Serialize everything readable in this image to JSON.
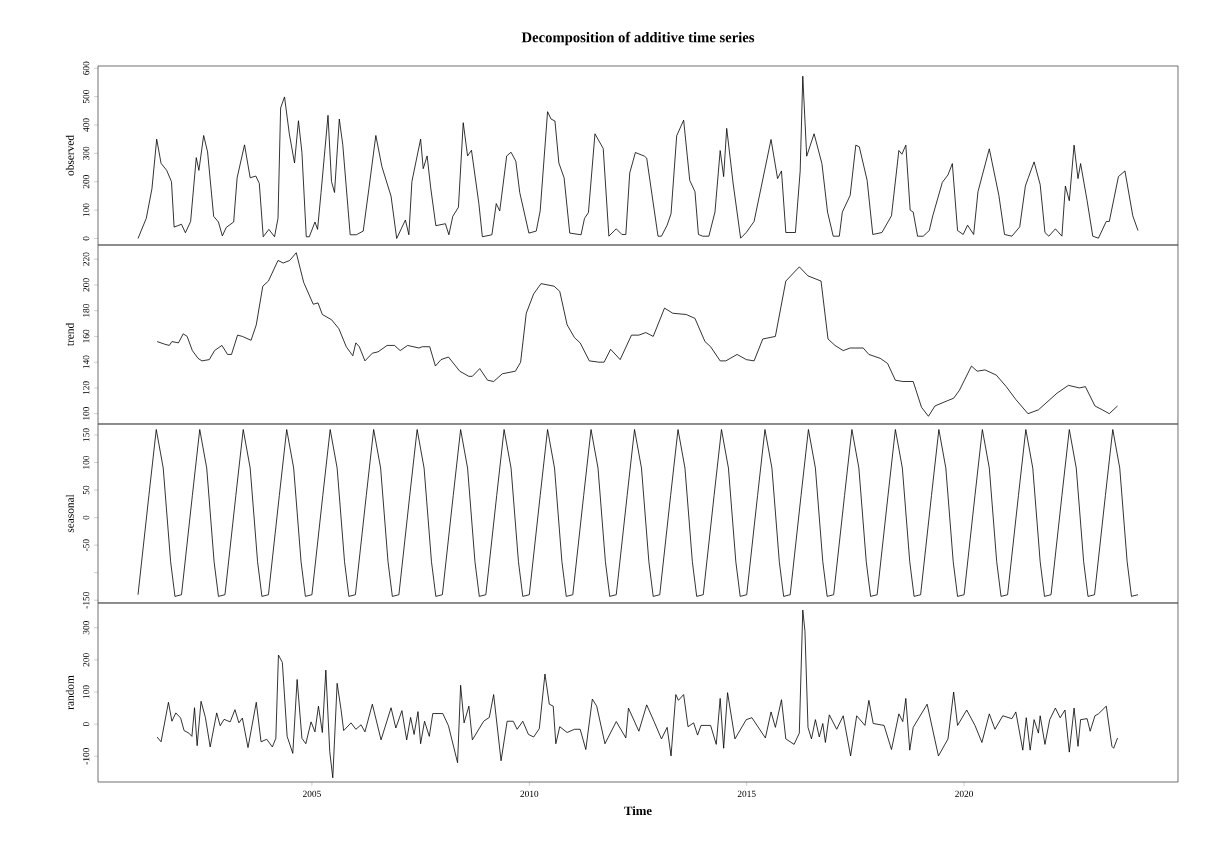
{
  "chart_data": [
    {
      "type": "line",
      "title": "Decomposition of additive time series",
      "ylabel": "observed",
      "color": "#000000",
      "xlim": [
        2000.08,
        2024.92
      ],
      "ylim": [
        -23,
        608
      ],
      "yticks": [
        0,
        100,
        200,
        300,
        400,
        500,
        600
      ],
      "tick_labels": "y",
      "x": [
        2001.0,
        2001.19,
        2001.32,
        2001.43,
        2001.53,
        2001.66,
        2001.77,
        2001.83,
        2002.0,
        2002.09,
        2002.21,
        2002.34,
        2002.4,
        2002.51,
        2002.6,
        2002.74,
        2002.85,
        2002.94,
        2003.03,
        2003.2,
        2003.28,
        2003.45,
        2003.58,
        2003.71,
        2003.79,
        2003.88,
        2004.01,
        2004.14,
        2004.22,
        2004.28,
        2004.37,
        2004.48,
        2004.6,
        2004.69,
        2004.77,
        2004.87,
        2004.94,
        2005.07,
        2005.13,
        2005.21,
        2005.37,
        2005.45,
        2005.52,
        2005.63,
        2005.71,
        2005.88,
        2006.02,
        2006.18,
        2006.31,
        2006.47,
        2006.61,
        2006.82,
        2006.95,
        2007.15,
        2007.23,
        2007.3,
        2007.5,
        2007.56,
        2007.65,
        2007.73,
        2007.85,
        2008.07,
        2008.15,
        2008.24,
        2008.37,
        2008.48,
        2008.58,
        2008.67,
        2008.84,
        2008.92,
        2009.14,
        2009.24,
        2009.32,
        2009.48,
        2009.58,
        2009.69,
        2009.78,
        2009.99,
        2010.16,
        2010.25,
        2010.42,
        2010.5,
        2010.59,
        2010.68,
        2010.8,
        2010.93,
        2011.19,
        2011.27,
        2011.36,
        2011.51,
        2011.7,
        2011.83,
        2012.0,
        2012.13,
        2012.22,
        2012.31,
        2012.44,
        2012.65,
        2012.7,
        2012.96,
        2013.04,
        2013.17,
        2013.26,
        2013.39,
        2013.55,
        2013.69,
        2013.81,
        2013.89,
        2013.99,
        2014.13,
        2014.27,
        2014.39,
        2014.47,
        2014.54,
        2014.69,
        2014.86,
        2014.99,
        2015.17,
        2015.56,
        2015.71,
        2015.8,
        2015.9,
        2016.12,
        2016.23,
        2016.29,
        2016.38,
        2016.55,
        2016.73,
        2016.86,
        2016.99,
        2017.13,
        2017.2,
        2017.38,
        2017.51,
        2017.59,
        2017.77,
        2017.9,
        2018.11,
        2018.33,
        2018.5,
        2018.57,
        2018.66,
        2018.76,
        2018.83,
        2018.93,
        2019.06,
        2019.2,
        2019.28,
        2019.5,
        2019.63,
        2019.73,
        2019.85,
        2019.98,
        2020.08,
        2020.22,
        2020.32,
        2020.58,
        2020.8,
        2020.93,
        2021.1,
        2021.28,
        2021.41,
        2021.47,
        2021.61,
        2021.75,
        2021.86,
        2021.95,
        2022.1,
        2022.25,
        2022.33,
        2022.42,
        2022.53,
        2022.62,
        2022.68,
        2022.83,
        2022.96,
        2023.09,
        2023.27,
        2023.34,
        2023.55,
        2023.7,
        2023.88,
        2024.0
      ],
      "values": [
        0,
        71,
        175,
        350,
        265,
        240,
        200,
        40,
        50,
        20,
        60,
        285,
        240,
        363,
        305,
        78,
        58,
        9,
        39,
        58,
        214,
        330,
        214,
        220,
        194,
        6,
        32,
        6,
        71,
        460,
        499,
        369,
        266,
        415,
        304,
        6,
        6,
        58,
        32,
        162,
        434,
        201,
        162,
        421,
        330,
        13,
        13,
        26,
        175,
        363,
        253,
        149,
        0,
        65,
        13,
        201,
        350,
        246,
        291,
        181,
        45,
        52,
        13,
        78,
        110,
        408,
        291,
        311,
        123,
        6,
        13,
        123,
        97,
        291,
        304,
        272,
        162,
        19,
        26,
        97,
        447,
        421,
        414,
        266,
        214,
        19,
        13,
        71,
        91,
        369,
        317,
        8,
        34,
        14,
        14,
        231,
        303,
        290,
        283,
        8,
        8,
        47,
        87,
        362,
        417,
        205,
        165,
        14,
        8,
        8,
        93,
        310,
        218,
        388,
        192,
        1,
        21,
        60,
        349,
        211,
        238,
        21,
        21,
        238,
        572,
        290,
        369,
        264,
        93,
        8,
        8,
        93,
        152,
        329,
        323,
        205,
        14,
        21,
        80,
        310,
        297,
        329,
        100,
        93,
        8,
        8,
        28,
        80,
        198,
        224,
        264,
        28,
        14,
        47,
        14,
        165,
        316,
        152,
        14,
        8,
        41,
        185,
        211,
        270,
        190,
        21,
        8,
        34,
        8,
        185,
        133,
        329,
        211,
        264,
        133,
        8,
        1,
        60,
        60,
        218,
        238,
        80,
        28
      ]
    },
    {
      "type": "line",
      "ylabel": "trend",
      "color": "#000000",
      "xlim": [
        2000.08,
        2024.92
      ],
      "ylim": [
        92,
        231
      ],
      "yticks": [
        100,
        120,
        140,
        160,
        180,
        200,
        220
      ],
      "tick_labels": "y",
      "x": [
        2001.44,
        2001.61,
        2001.72,
        2001.78,
        2001.93,
        2002.04,
        2002.13,
        2002.25,
        2002.38,
        2002.47,
        2002.64,
        2002.76,
        2002.93,
        2003.06,
        2003.15,
        2003.29,
        2003.4,
        2003.6,
        2003.72,
        2003.87,
        2004.0,
        2004.22,
        2004.34,
        2004.49,
        2004.64,
        2004.81,
        2005.03,
        2005.14,
        2005.24,
        2005.45,
        2005.62,
        2005.79,
        2005.94,
        2006.01,
        2006.09,
        2006.22,
        2006.39,
        2006.52,
        2006.73,
        2006.9,
        2007.03,
        2007.2,
        2007.46,
        2007.54,
        2007.71,
        2007.84,
        2007.97,
        2008.14,
        2008.4,
        2008.61,
        2008.69,
        2008.86,
        2009.04,
        2009.18,
        2009.38,
        2009.68,
        2009.8,
        2009.93,
        2010.1,
        2010.27,
        2010.57,
        2010.7,
        2010.87,
        2011.04,
        2011.17,
        2011.38,
        2011.6,
        2011.72,
        2011.87,
        2012.09,
        2012.35,
        2012.52,
        2012.68,
        2012.85,
        2013.11,
        2013.3,
        2013.61,
        2013.81,
        2014.04,
        2014.17,
        2014.39,
        2014.52,
        2014.78,
        2014.99,
        2015.17,
        2015.37,
        2015.66,
        2015.9,
        2016.21,
        2016.41,
        2016.71,
        2016.87,
        2017.03,
        2017.22,
        2017.38,
        2017.68,
        2017.81,
        2018.07,
        2018.24,
        2018.42,
        2018.59,
        2018.83,
        2019.02,
        2019.18,
        2019.33,
        2019.54,
        2019.76,
        2019.89,
        2020.17,
        2020.3,
        2020.48,
        2020.74,
        2020.97,
        2021.19,
        2021.47,
        2021.71,
        2022.14,
        2022.4,
        2022.65,
        2022.79,
        2023.01,
        2023.18,
        2023.34,
        2023.53
      ],
      "values": [
        156,
        154,
        153,
        156,
        155,
        162,
        160,
        149,
        143,
        141,
        142,
        149,
        153,
        146,
        146,
        161,
        160,
        157,
        169,
        199,
        203,
        219,
        217,
        219,
        225,
        202,
        185,
        186,
        177,
        173,
        166,
        152,
        145,
        155,
        152,
        141,
        147,
        148,
        153,
        153,
        149,
        153,
        151,
        152,
        152,
        137,
        142,
        144,
        133,
        129,
        129,
        135,
        126,
        125,
        131,
        133,
        140,
        178,
        193,
        201,
        199,
        195,
        169,
        159,
        155,
        141,
        140,
        140,
        150,
        142,
        161,
        161,
        163,
        160,
        182,
        178,
        177,
        174,
        156,
        152,
        141,
        141,
        146,
        142,
        141,
        158,
        160,
        203,
        214,
        207,
        203,
        158,
        153,
        149,
        151,
        151,
        146,
        143,
        139,
        126,
        125,
        125,
        105,
        98,
        106,
        109,
        112,
        118,
        137,
        133,
        134,
        130,
        121,
        111,
        100,
        103,
        116,
        122,
        120,
        121,
        106,
        103,
        100,
        106
      ]
    },
    {
      "type": "line",
      "ylabel": "seasonal",
      "color": "#000000",
      "xlim": [
        2000.08,
        2024.92
      ],
      "ylim": [
        -155,
        170
      ],
      "yticks": [
        -150,
        {
          "value": -100,
          "label": null
        },
        -50,
        0,
        50,
        100,
        150
      ],
      "tick_labels": "y",
      "x": [
        2001.0,
        2001.25,
        2001.42,
        2001.58,
        2001.75,
        2001.85,
        2002.0,
        2002.25,
        2002.42,
        2002.58,
        2002.75,
        2002.85,
        2003.0,
        2003.25,
        2003.42,
        2003.58,
        2003.75,
        2003.85,
        2004.0,
        2004.25,
        2004.42,
        2004.58,
        2004.75,
        2004.85,
        2005.0,
        2005.25,
        2005.42,
        2005.58,
        2005.75,
        2005.85,
        2006.0,
        2006.25,
        2006.42,
        2006.58,
        2006.75,
        2006.85,
        2007.0,
        2007.25,
        2007.42,
        2007.58,
        2007.75,
        2007.85,
        2008.0,
        2008.25,
        2008.42,
        2008.58,
        2008.75,
        2008.85,
        2009.0,
        2009.25,
        2009.42,
        2009.58,
        2009.75,
        2009.85,
        2010.0,
        2010.25,
        2010.42,
        2010.58,
        2010.75,
        2010.85,
        2011.0,
        2011.25,
        2011.42,
        2011.58,
        2011.75,
        2011.85,
        2012.0,
        2012.25,
        2012.42,
        2012.58,
        2012.75,
        2012.85,
        2013.0,
        2013.25,
        2013.42,
        2013.58,
        2013.75,
        2013.85,
        2014.0,
        2014.25,
        2014.42,
        2014.58,
        2014.75,
        2014.85,
        2015.0,
        2015.25,
        2015.42,
        2015.58,
        2015.75,
        2015.85,
        2016.0,
        2016.25,
        2016.42,
        2016.58,
        2016.75,
        2016.85,
        2017.0,
        2017.25,
        2017.42,
        2017.58,
        2017.75,
        2017.85,
        2018.0,
        2018.25,
        2018.42,
        2018.58,
        2018.75,
        2018.85,
        2019.0,
        2019.25,
        2019.42,
        2019.58,
        2019.75,
        2019.85,
        2020.0,
        2020.25,
        2020.42,
        2020.58,
        2020.75,
        2020.85,
        2021.0,
        2021.25,
        2021.42,
        2021.58,
        2021.75,
        2021.85,
        2022.0,
        2022.25,
        2022.42,
        2022.58,
        2022.75,
        2022.85,
        2023.0,
        2023.25,
        2023.42,
        2023.58,
        2023.75,
        2023.85,
        2024.0
      ],
      "values": [
        -140,
        40,
        160,
        90,
        -80,
        -143,
        -140,
        40,
        160,
        90,
        -80,
        -143,
        -140,
        40,
        160,
        90,
        -80,
        -143,
        -140,
        40,
        160,
        90,
        -80,
        -143,
        -140,
        40,
        160,
        90,
        -80,
        -143,
        -140,
        40,
        160,
        90,
        -80,
        -143,
        -140,
        40,
        160,
        90,
        -80,
        -143,
        -140,
        40,
        160,
        90,
        -80,
        -143,
        -140,
        40,
        160,
        90,
        -80,
        -143,
        -140,
        40,
        160,
        90,
        -80,
        -143,
        -140,
        40,
        160,
        90,
        -80,
        -143,
        -140,
        40,
        160,
        90,
        -80,
        -143,
        -140,
        40,
        160,
        90,
        -80,
        -143,
        -140,
        40,
        160,
        90,
        -80,
        -143,
        -140,
        40,
        160,
        90,
        -80,
        -143,
        -140,
        40,
        160,
        90,
        -80,
        -143,
        -140,
        40,
        160,
        90,
        -80,
        -143,
        -140,
        40,
        160,
        90,
        -80,
        -143,
        -140,
        40,
        160,
        90,
        -80,
        -143,
        -140,
        40,
        160,
        90,
        -80,
        -143,
        -140,
        40,
        160,
        90,
        -80,
        -143,
        -140,
        40,
        160,
        90,
        -80,
        -143,
        -140,
        40,
        160,
        90,
        -80,
        -143,
        -140
      ]
    },
    {
      "type": "line",
      "ylabel": "random",
      "xlabel": "Time",
      "color": "#000000",
      "xlim": [
        2000.08,
        2024.92
      ],
      "xticks": [
        2005,
        2010,
        2015,
        2020
      ],
      "ylim": [
        -180,
        377
      ],
      "yticks": [
        -100,
        0,
        100,
        200,
        300
      ],
      "x": [
        2001.44,
        2001.53,
        2001.7,
        2001.78,
        2001.87,
        2001.98,
        2002.06,
        2002.17,
        2002.24,
        2002.3,
        2002.36,
        2002.45,
        2002.55,
        2002.66,
        2002.81,
        2002.89,
        2002.98,
        2003.12,
        2003.23,
        2003.32,
        2003.4,
        2003.53,
        2003.72,
        2003.83,
        2003.96,
        2004.09,
        2004.17,
        2004.23,
        2004.32,
        2004.43,
        2004.56,
        2004.66,
        2004.77,
        2004.86,
        2004.98,
        2005.07,
        2005.15,
        2005.24,
        2005.32,
        2005.41,
        2005.48,
        2005.58,
        2005.67,
        2005.73,
        2005.9,
        2006.01,
        2006.13,
        2006.22,
        2006.39,
        2006.59,
        2006.82,
        2006.93,
        2007.07,
        2007.18,
        2007.27,
        2007.35,
        2007.44,
        2007.5,
        2007.59,
        2007.7,
        2007.78,
        2008.01,
        2008.14,
        2008.35,
        2008.42,
        2008.5,
        2008.61,
        2008.69,
        2008.95,
        2009.08,
        2009.18,
        2009.35,
        2009.49,
        2009.63,
        2009.72,
        2009.85,
        2009.98,
        2010.1,
        2010.23,
        2010.36,
        2010.46,
        2010.55,
        2010.61,
        2010.7,
        2010.87,
        2011.04,
        2011.17,
        2011.3,
        2011.45,
        2011.55,
        2011.74,
        2012.0,
        2012.22,
        2012.28,
        2012.52,
        2012.7,
        2012.87,
        2013.04,
        2013.17,
        2013.26,
        2013.37,
        2013.43,
        2013.55,
        2013.65,
        2013.78,
        2013.87,
        2013.95,
        2014.17,
        2014.3,
        2014.39,
        2014.47,
        2014.56,
        2014.73,
        2014.99,
        2015.12,
        2015.43,
        2015.56,
        2015.66,
        2015.8,
        2015.9,
        2016.09,
        2016.21,
        2016.29,
        2016.34,
        2016.41,
        2016.49,
        2016.58,
        2016.67,
        2016.75,
        2016.81,
        2016.9,
        2017.07,
        2017.22,
        2017.39,
        2017.53,
        2017.72,
        2017.81,
        2017.91,
        2018.16,
        2018.33,
        2018.5,
        2018.59,
        2018.66,
        2018.75,
        2018.83,
        2019.15,
        2019.41,
        2019.63,
        2019.76,
        2019.85,
        2020.06,
        2020.25,
        2020.41,
        2020.58,
        2020.71,
        2020.89,
        2021.1,
        2021.19,
        2021.35,
        2021.43,
        2021.52,
        2021.61,
        2021.71,
        2021.75,
        2021.86,
        2021.97,
        2022.1,
        2022.21,
        2022.32,
        2022.42,
        2022.53,
        2022.62,
        2022.68,
        2022.83,
        2022.9,
        2023.01,
        2023.09,
        2023.27,
        2023.4,
        2023.44,
        2023.53
      ],
      "values": [
        -40,
        -55,
        68,
        9,
        35,
        19,
        -20,
        -28,
        -38,
        51,
        -67,
        71,
        21,
        -71,
        35,
        -5,
        15,
        7,
        45,
        4,
        19,
        -73,
        68,
        -55,
        -47,
        -71,
        -44,
        215,
        192,
        -38,
        -91,
        139,
        -44,
        -61,
        7,
        -24,
        56,
        -26,
        168,
        -85,
        -167,
        127,
        45,
        -20,
        4,
        -16,
        -2,
        -24,
        62,
        -49,
        51,
        -12,
        42,
        -49,
        21,
        -32,
        39,
        -61,
        9,
        -38,
        33,
        33,
        -5,
        -120,
        121,
        4,
        56,
        -49,
        9,
        21,
        92,
        -114,
        9,
        9,
        -16,
        9,
        -32,
        -40,
        -14,
        156,
        62,
        56,
        -61,
        -8,
        -26,
        -16,
        -16,
        -79,
        78,
        56,
        -61,
        8,
        -43,
        50,
        -22,
        60,
        8,
        -46,
        -10,
        -99,
        92,
        74,
        92,
        -8,
        4,
        -34,
        -4,
        -4,
        -63,
        80,
        -75,
        98,
        -46,
        14,
        20,
        -43,
        38,
        -10,
        76,
        -46,
        -63,
        -28,
        355,
        289,
        -10,
        -46,
        14,
        -40,
        2,
        -57,
        29,
        -16,
        26,
        -99,
        26,
        -4,
        74,
        2,
        -4,
        -79,
        32,
        8,
        80,
        -81,
        -10,
        62,
        -99,
        -46,
        100,
        -4,
        44,
        -4,
        -57,
        32,
        -16,
        26,
        17,
        38,
        -81,
        20,
        -81,
        14,
        -28,
        26,
        -63,
        14,
        50,
        20,
        44,
        -87,
        50,
        -69,
        14,
        17,
        -22,
        26,
        32,
        56,
        -69,
        -75,
        -43
      ]
    }
  ]
}
